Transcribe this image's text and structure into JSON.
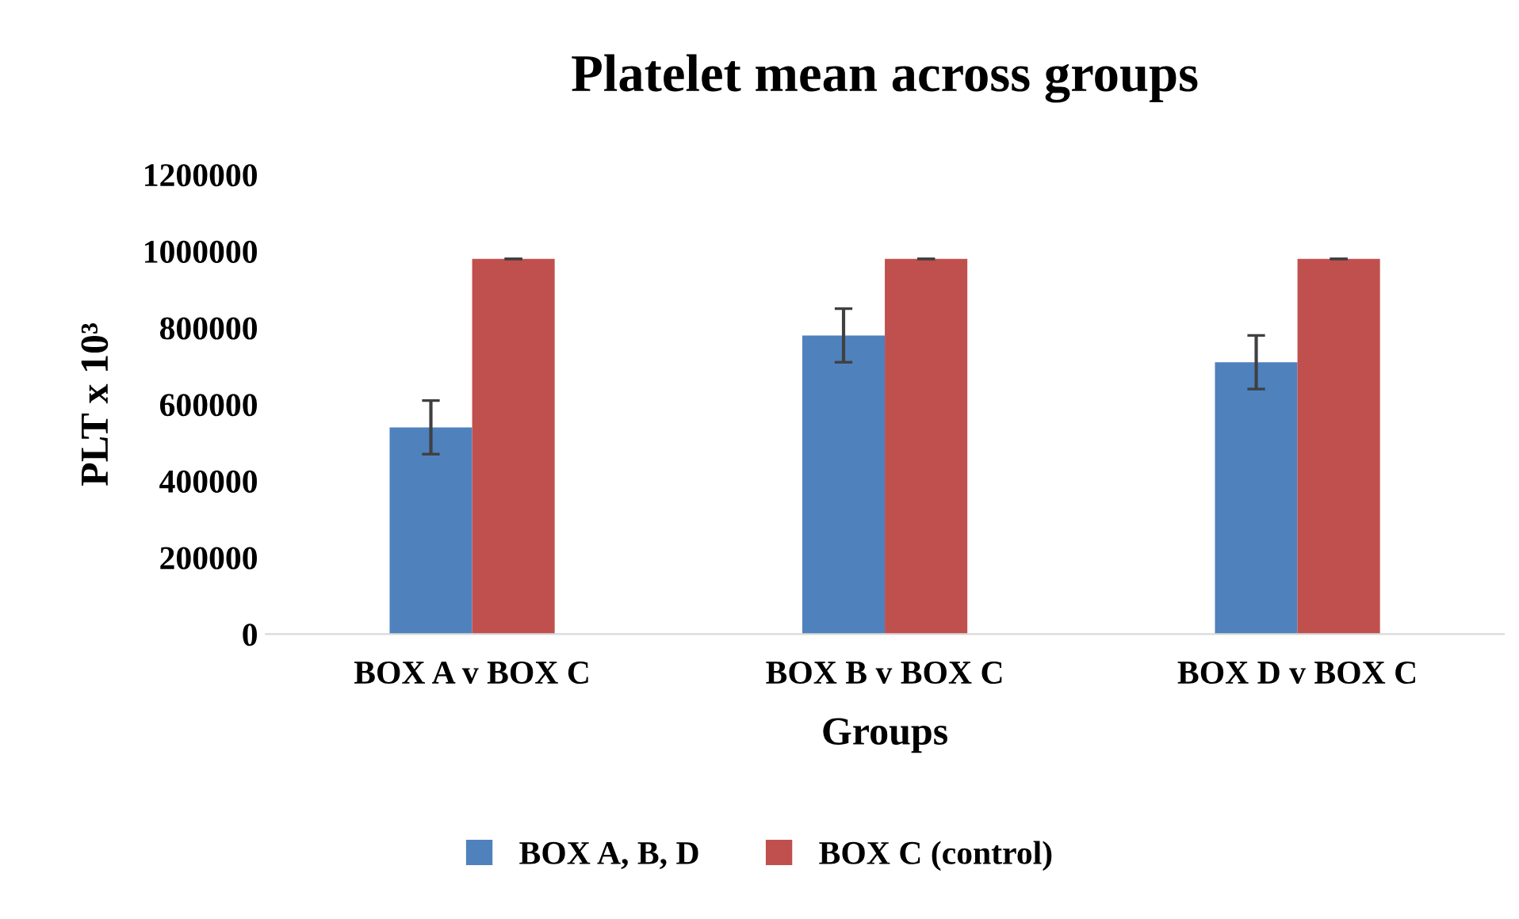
{
  "chart_data": {
    "type": "bar",
    "title": "Platelet mean across groups",
    "xlabel": "Groups",
    "ylabel": "PLT x 10³",
    "categories": [
      "BOX A v BOX C",
      "BOX B v BOX C",
      "BOX D v BOX C"
    ],
    "series": [
      {
        "name": "BOX A, B, D",
        "color": "#4f81bd",
        "values": [
          540000,
          780000,
          710000
        ],
        "errors": [
          70000,
          70000,
          70000
        ]
      },
      {
        "name": "BOX C (control)",
        "color": "#c0504d",
        "values": [
          980000,
          980000,
          980000
        ],
        "errors": [
          0,
          0,
          0
        ]
      }
    ],
    "ylim": [
      0,
      1200000
    ],
    "yticks": [
      0,
      200000,
      400000,
      600000,
      800000,
      1000000,
      1200000
    ],
    "grid": false,
    "legend": "bottom"
  }
}
